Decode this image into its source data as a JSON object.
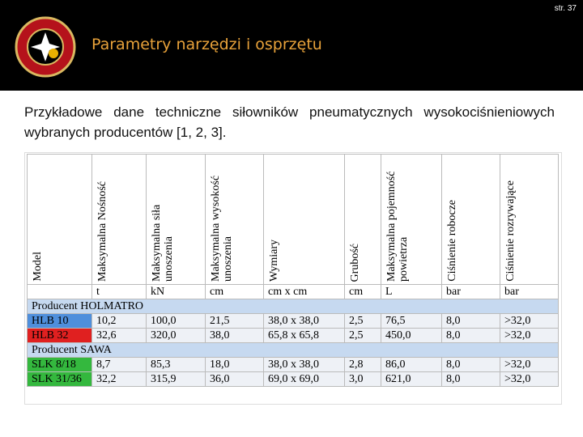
{
  "header": {
    "page": "str. 37",
    "title": "Parametry narzędzi i osprzętu"
  },
  "body": {
    "text": "Przykładowe dane techniczne siłowników pneumatycznych wysokociśnieniowych wybranych producentów [1, 2, 3]."
  },
  "table": {
    "columns": [
      "Model",
      "Maksymalna Nośność",
      "Maksymalna siła unoszenia",
      "Maksymalna wysokość unoszenia",
      "Wymiary",
      "Grubość",
      "Maksymalna pojemność powietrza",
      "Ciśnienie robocze",
      "Ciśnienie rozrywające"
    ],
    "units": [
      "t",
      "kN",
      "cm",
      "cm x cm",
      "cm",
      "L",
      "bar",
      "bar"
    ],
    "sections": [
      {
        "title": "Producent HOLMATRO",
        "rows": [
          [
            "HLB 10",
            "10,2",
            "100,0",
            "21,5",
            "38,0 x 38,0",
            "2,5",
            "76,5",
            "8,0",
            ">32,0"
          ],
          [
            "HLB 32",
            "32,6",
            "320,0",
            "38,0",
            "65,8 x 65,8",
            "2,5",
            "450,0",
            "8,0",
            ">32,0"
          ]
        ]
      },
      {
        "title": "Producent SAWA",
        "rows": [
          [
            "SLK 8/18",
            "8,7",
            "85,3",
            "18,0",
            "38,0 x 38,0",
            "2,8",
            "86,0",
            "8,0",
            ">32,0"
          ],
          [
            "SLK 31/36",
            "32,2",
            "315,9",
            "36,0",
            "69,0 x 69,0",
            "3,0",
            "621,0",
            "8,0",
            ">32,0"
          ]
        ]
      }
    ]
  }
}
